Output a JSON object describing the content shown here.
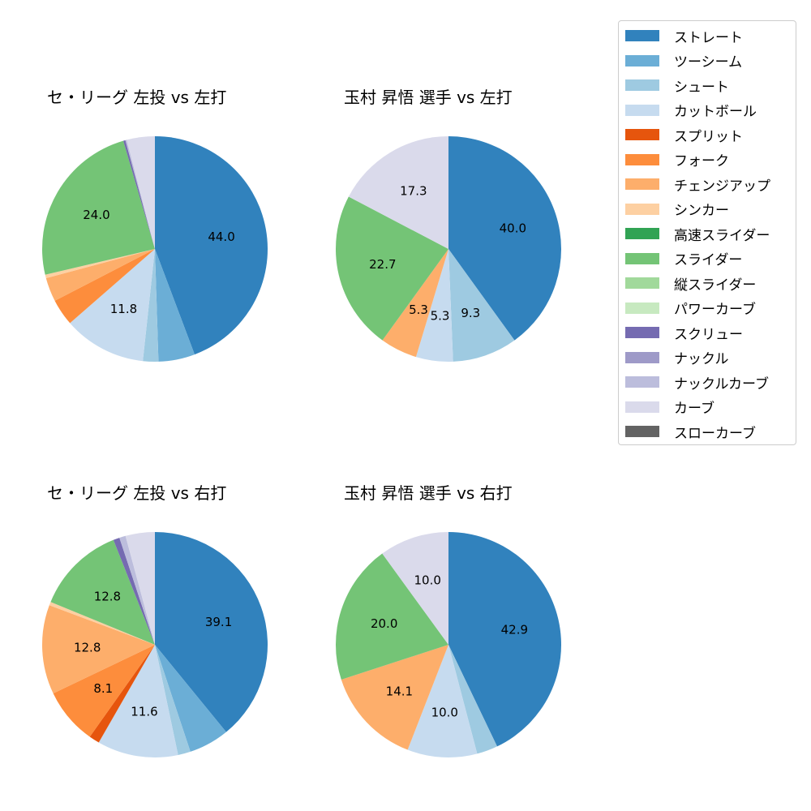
{
  "legend": {
    "items": [
      {
        "label": "ストレート",
        "color": "#3182bd"
      },
      {
        "label": "ツーシーム",
        "color": "#6baed6"
      },
      {
        "label": "シュート",
        "color": "#9ecae1"
      },
      {
        "label": "カットボール",
        "color": "#c6dbef"
      },
      {
        "label": "スプリット",
        "color": "#e6550d"
      },
      {
        "label": "フォーク",
        "color": "#fd8d3c"
      },
      {
        "label": "チェンジアップ",
        "color": "#fdae6b"
      },
      {
        "label": "シンカー",
        "color": "#fdd0a2"
      },
      {
        "label": "高速スライダー",
        "color": "#31a354"
      },
      {
        "label": "スライダー",
        "color": "#74c476"
      },
      {
        "label": "縦スライダー",
        "color": "#a1d99b"
      },
      {
        "label": "パワーカーブ",
        "color": "#c7e9c0"
      },
      {
        "label": "スクリュー",
        "color": "#756bb1"
      },
      {
        "label": "ナックル",
        "color": "#9e9ac8"
      },
      {
        "label": "ナックルカーブ",
        "color": "#bcbddc"
      },
      {
        "label": "カーブ",
        "color": "#dadaeb"
      },
      {
        "label": "スローカーブ",
        "color": "#636363"
      }
    ]
  },
  "chart_data": [
    {
      "type": "pie",
      "title": "セ・リーグ 左投 vs 左打",
      "start_angle": 90,
      "direction": "clockwise",
      "slices": [
        {
          "label": "ストレート",
          "value": 44.0,
          "shown": "44.0"
        },
        {
          "label": "ツーシーム",
          "value": 5.2,
          "shown": ""
        },
        {
          "label": "シュート",
          "value": 2.2,
          "shown": ""
        },
        {
          "label": "カットボール",
          "value": 11.8,
          "shown": "11.8"
        },
        {
          "label": "フォーク",
          "value": 3.8,
          "shown": ""
        },
        {
          "label": "チェンジアップ",
          "value": 3.4,
          "shown": ""
        },
        {
          "label": "シンカー",
          "value": 0.5,
          "shown": ""
        },
        {
          "label": "スライダー",
          "value": 24.0,
          "shown": "24.0"
        },
        {
          "label": "スクリュー",
          "value": 0.3,
          "shown": ""
        },
        {
          "label": "ナックルカーブ",
          "value": 0.2,
          "shown": ""
        },
        {
          "label": "カーブ",
          "value": 4.0,
          "shown": ""
        }
      ]
    },
    {
      "type": "pie",
      "title": "玉村 昇悟 選手 vs 左打",
      "start_angle": 90,
      "direction": "clockwise",
      "slices": [
        {
          "label": "ストレート",
          "value": 40.0,
          "shown": "40.0"
        },
        {
          "label": "シュート",
          "value": 9.3,
          "shown": "9.3"
        },
        {
          "label": "カットボール",
          "value": 5.3,
          "shown": "5.3"
        },
        {
          "label": "チェンジアップ",
          "value": 5.3,
          "shown": "5.3"
        },
        {
          "label": "スライダー",
          "value": 22.7,
          "shown": "22.7"
        },
        {
          "label": "カーブ",
          "value": 17.3,
          "shown": "17.3"
        }
      ]
    },
    {
      "type": "pie",
      "title": "セ・リーグ 左投 vs 右打",
      "start_angle": 90,
      "direction": "clockwise",
      "slices": [
        {
          "label": "ストレート",
          "value": 39.1,
          "shown": "39.1"
        },
        {
          "label": "ツーシーム",
          "value": 5.8,
          "shown": ""
        },
        {
          "label": "シュート",
          "value": 1.8,
          "shown": ""
        },
        {
          "label": "カットボール",
          "value": 11.6,
          "shown": "11.6"
        },
        {
          "label": "スプリット",
          "value": 1.5,
          "shown": ""
        },
        {
          "label": "フォーク",
          "value": 8.1,
          "shown": "8.1"
        },
        {
          "label": "チェンジアップ",
          "value": 12.8,
          "shown": "12.8"
        },
        {
          "label": "シンカー",
          "value": 0.5,
          "shown": ""
        },
        {
          "label": "スライダー",
          "value": 12.8,
          "shown": "12.8"
        },
        {
          "label": "スクリュー",
          "value": 0.9,
          "shown": ""
        },
        {
          "label": "ナックルカーブ",
          "value": 0.9,
          "shown": ""
        },
        {
          "label": "カーブ",
          "value": 4.2,
          "shown": ""
        }
      ]
    },
    {
      "type": "pie",
      "title": "玉村 昇悟 選手 vs 右打",
      "start_angle": 90,
      "direction": "clockwise",
      "slices": [
        {
          "label": "ストレート",
          "value": 42.9,
          "shown": "42.9"
        },
        {
          "label": "シュート",
          "value": 3.0,
          "shown": ""
        },
        {
          "label": "カットボール",
          "value": 10.0,
          "shown": "10.0"
        },
        {
          "label": "チェンジアップ",
          "value": 14.1,
          "shown": "14.1"
        },
        {
          "label": "スライダー",
          "value": 20.0,
          "shown": "20.0"
        },
        {
          "label": "カーブ",
          "value": 10.0,
          "shown": "10.0"
        }
      ]
    }
  ],
  "panels": [
    {
      "title": "セ・リーグ 左投 vs 左打"
    },
    {
      "title": "玉村 昇悟 選手 vs 左打"
    },
    {
      "title": "セ・リーグ 左投 vs 右打"
    },
    {
      "title": "玉村 昇悟 選手 vs 右打"
    }
  ]
}
